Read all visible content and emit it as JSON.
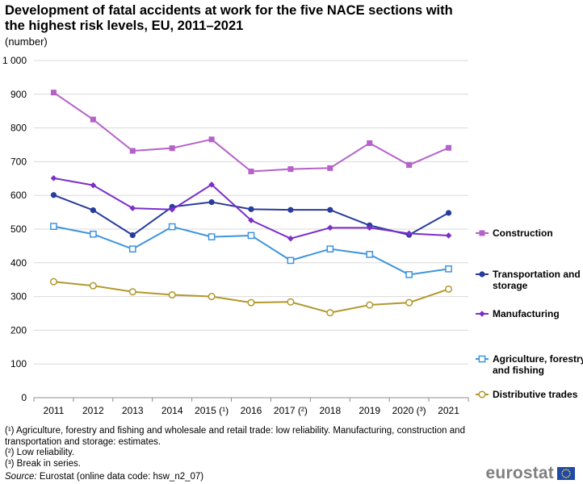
{
  "chart_data": {
    "type": "line",
    "title": "Development of fatal accidents at work for the five NACE sections with the highest risk levels, EU, 2011–2021",
    "subtitle": "(number)",
    "categories": [
      "2011",
      "2012",
      "2013",
      "2014",
      "2015 (¹)",
      "2016",
      "2017 (²)",
      "2018",
      "2019",
      "2020 (³)",
      "2021"
    ],
    "ylim": [
      0,
      1000
    ],
    "yticks": [
      0,
      100,
      200,
      300,
      400,
      500,
      600,
      700,
      800,
      900,
      1000
    ],
    "ytick_labels": [
      "0",
      "100",
      "200",
      "300",
      "400",
      "500",
      "600",
      "700",
      "800",
      "900",
      "1 000"
    ],
    "grid": "horizontal",
    "legend_position": "right",
    "series": [
      {
        "name": "Construction",
        "color": "#b561c9",
        "marker": "square-filled",
        "values": [
          905,
          825,
          732,
          740,
          766,
          671,
          678,
          681,
          755,
          690,
          741
        ]
      },
      {
        "name": "Transportation and storage",
        "color": "#283c9b",
        "marker": "circle-filled",
        "values": [
          601,
          556,
          482,
          566,
          580,
          559,
          557,
          557,
          511,
          483,
          548
        ]
      },
      {
        "name": "Manufacturing",
        "color": "#7a2fc9",
        "marker": "diamond-filled",
        "values": [
          651,
          630,
          562,
          558,
          632,
          526,
          472,
          504,
          504,
          487,
          481
        ]
      },
      {
        "name": "Agriculture, forestry and fishing",
        "color": "#3f94dd",
        "marker": "square-open",
        "values": [
          508,
          485,
          441,
          507,
          477,
          481,
          407,
          441,
          425,
          365,
          382
        ]
      },
      {
        "name": "Distributive trades",
        "color": "#b2982c",
        "marker": "circle-open",
        "values": [
          344,
          332,
          314,
          305,
          300,
          282,
          284,
          252,
          275,
          282,
          322
        ]
      }
    ]
  },
  "legend_labels": {
    "s0": [
      "Construction"
    ],
    "s1": [
      "Transportation and",
      "storage"
    ],
    "s2": [
      "Manufacturing"
    ],
    "s3": [
      "Agriculture, forestry",
      "and fishing"
    ],
    "s4": [
      "Distributive trades"
    ]
  },
  "footnotes": {
    "note1": "(¹) Agriculture, forestry and fishing and wholesale and retail trade: low reliability. Manufacturing, construction and transportation and storage: estimates.",
    "note2": "(²) Low reliability.",
    "note3": "(³) Break in series.",
    "source_label": "Source:",
    "source_text": " Eurostat (online data code: hsw_n2_07)"
  },
  "logo": {
    "text": "eurostat"
  }
}
